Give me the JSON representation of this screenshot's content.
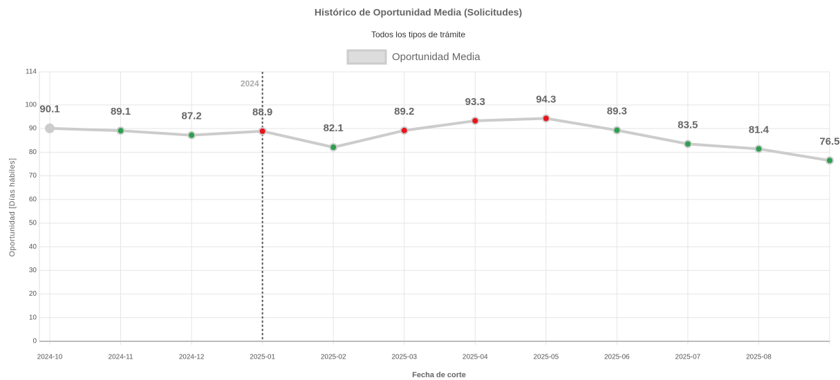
{
  "chart_data": {
    "type": "line",
    "title": "Histórico de Oportunidad Media (Solicitudes)",
    "subtitle": "Todos los tipos de trámite",
    "x_label": "Fecha de corte",
    "y_label": "Oportunidad [Días hábiles]",
    "categories": [
      "2024-10",
      "2024-11",
      "2024-12",
      "2025-01",
      "2025-02",
      "2025-03",
      "2025-04",
      "2025-05",
      "2025-06",
      "2025-07",
      "2025-08",
      null
    ],
    "series": [
      {
        "name": "Oportunidad Media",
        "color": "#cccccc",
        "values": [
          90.1,
          89.1,
          87.2,
          88.9,
          82.1,
          89.2,
          93.3,
          94.3,
          89.3,
          83.5,
          81.4,
          76.5
        ],
        "point_colors": [
          "#cccccc",
          "#2e9e4f",
          "#2e9e4f",
          "#e8141b",
          "#2e9e4f",
          "#e8141b",
          "#e8141b",
          "#e8141b",
          "#2e9e4f",
          "#2e9e4f",
          "#2e9e4f",
          "#2e9e4f"
        ]
      }
    ],
    "ylim": [
      0,
      114
    ],
    "yticks": [
      0,
      10,
      20,
      30,
      40,
      50,
      60,
      70,
      80,
      90,
      100,
      114
    ],
    "grid": true,
    "legend": "top",
    "annotations": [
      {
        "x": "2025-01",
        "label": "2024"
      }
    ]
  }
}
